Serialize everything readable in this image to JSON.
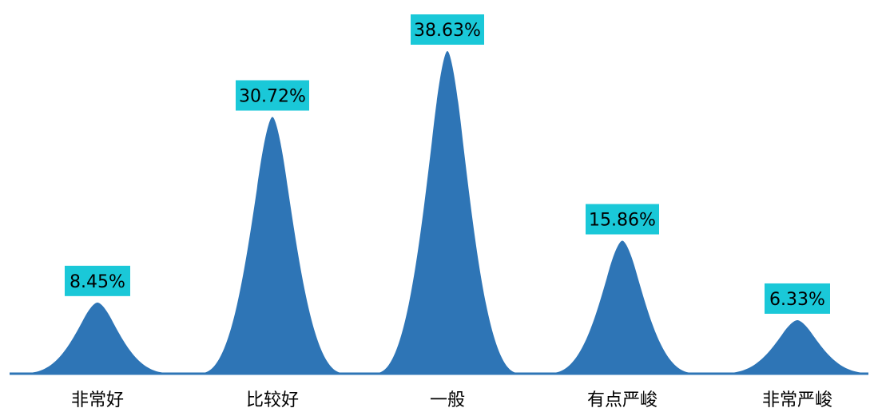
{
  "chart_data": {
    "type": "area",
    "title": "",
    "xlabel": "",
    "ylabel": "",
    "categories": [
      "非常好",
      "比较好",
      "一般",
      "有点严峻",
      "非常严峻"
    ],
    "values": [
      8.45,
      30.72,
      38.63,
      15.86,
      6.33
    ],
    "value_labels": [
      "8.45%",
      "30.72%",
      "38.63%",
      "15.86%",
      "6.33%"
    ],
    "unit": "%",
    "ylim": [
      0,
      40
    ],
    "grid": false,
    "legend": "none",
    "colors": {
      "peak_fill": "#2E75B6",
      "baseline": "#2E75B6",
      "label_box": "#1AC8D8",
      "label_text": "#000000",
      "category_text": "#000000"
    }
  }
}
